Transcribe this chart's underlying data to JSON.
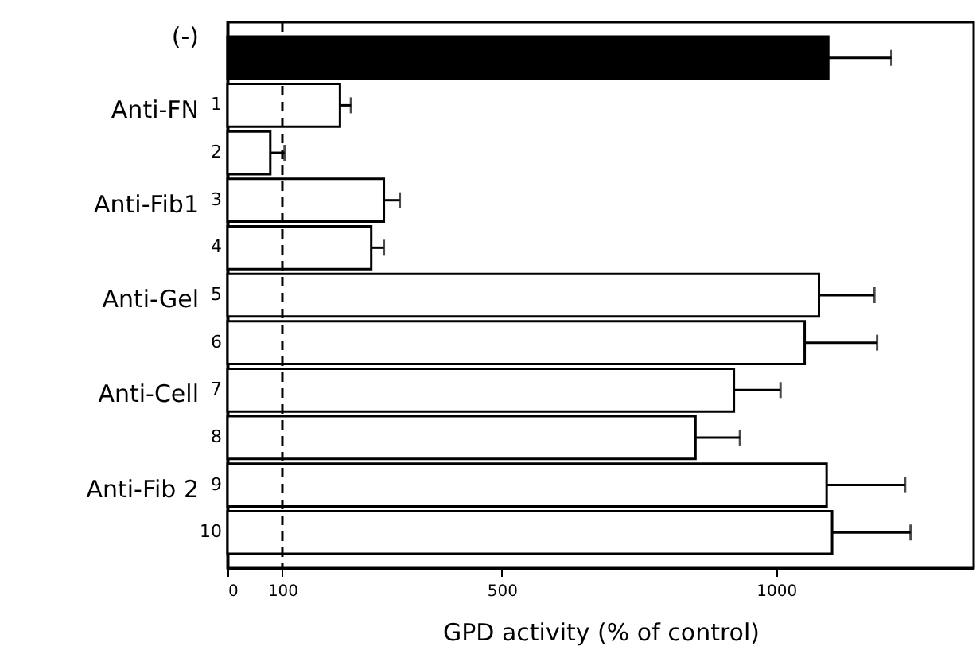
{
  "chart_data": {
    "type": "bar",
    "orientation": "horizontal",
    "xlabel": "GPD activity (% of control)",
    "categories": [
      "(-)",
      "1",
      "2",
      "3",
      "4",
      "5",
      "6",
      "7",
      "8",
      "9",
      "10"
    ],
    "values": [
      1095,
      205,
      78,
      285,
      262,
      1078,
      1052,
      923,
      853,
      1092,
      1102
    ],
    "errors": [
      [
        1095,
        1210
      ],
      [
        205,
        225
      ],
      [
        78,
        104
      ],
      [
        285,
        314
      ],
      [
        262,
        285
      ],
      [
        1078,
        1179
      ],
      [
        1052,
        1184
      ],
      [
        923,
        1008
      ],
      [
        853,
        934
      ],
      [
        1092,
        1235
      ],
      [
        1102,
        1245
      ]
    ],
    "colors": [
      "#000000",
      "#ffffff",
      "#ffffff",
      "#ffffff",
      "#ffffff",
      "#ffffff",
      "#ffffff",
      "#ffffff",
      "#ffffff",
      "#ffffff",
      "#ffffff"
    ],
    "xlim": [
      0,
      1360
    ],
    "xticks": [
      0,
      100,
      500,
      1000
    ],
    "ref_lines": [
      {
        "axis": "x",
        "value": 100,
        "line_style": "dashed"
      }
    ],
    "annotations": [
      "Anti-FN",
      "Anti-Fib1",
      "Anti-Gel",
      "Anti-Cell",
      "Anti-Fib 2"
    ],
    "grid": false
  }
}
